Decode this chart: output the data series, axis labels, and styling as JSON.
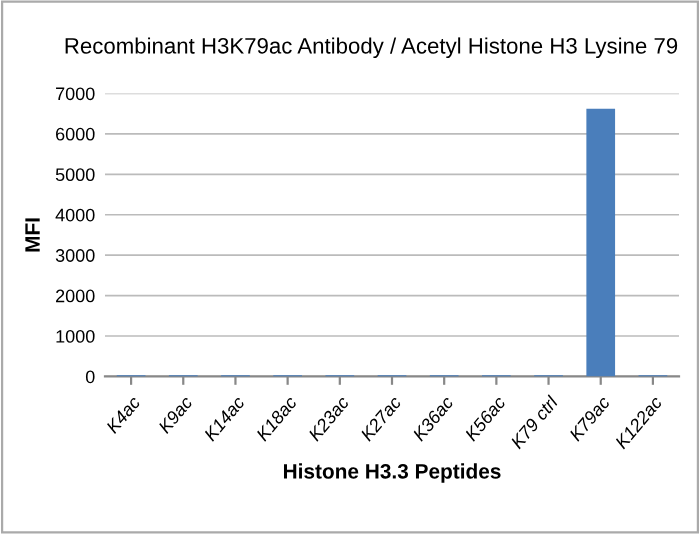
{
  "chart_data": {
    "type": "bar",
    "title": "Recombinant H3K79ac Antibody / Acetyl Histone H3 Lysine 79",
    "xlabel": "Histone H3.3 Peptides",
    "ylabel": "MFI",
    "categories": [
      "K4ac",
      "K9ac",
      "K14ac",
      "K18ac",
      "K23ac",
      "K27ac",
      "K36ac",
      "K56ac",
      "K79 ctrl",
      "K79ac",
      "K122ac"
    ],
    "values": [
      30,
      30,
      30,
      30,
      30,
      30,
      30,
      30,
      30,
      6620,
      30
    ],
    "color": "#4a7ebb",
    "ylim": [
      0,
      7000
    ],
    "yticks": [
      0,
      1000,
      2000,
      3000,
      4000,
      5000,
      6000,
      7000
    ],
    "grid": "y"
  }
}
